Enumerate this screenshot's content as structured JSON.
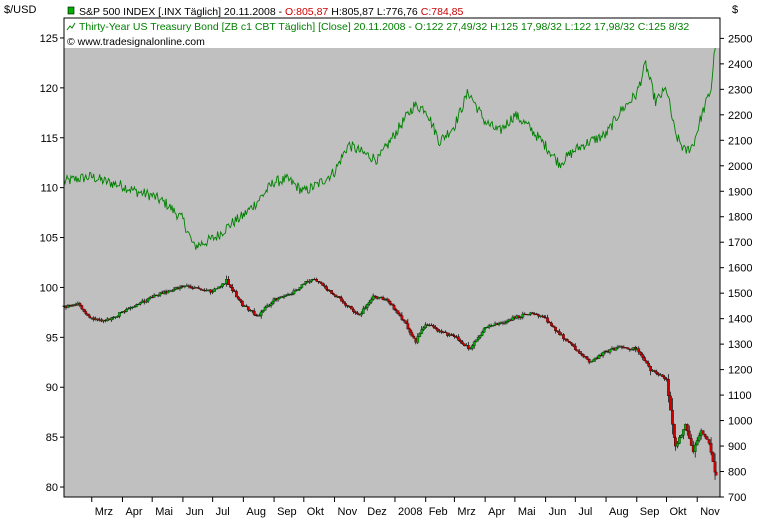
{
  "left_axis_unit": "$/USD",
  "right_axis_unit": "$",
  "watermark": "© www.tradesignalonline.com",
  "legend": {
    "spx": {
      "prefix": "S&P 500 INDEX [.INX  Täglich] 20.11.2008 - ",
      "open": "O:805,87",
      "high": "H:805,87",
      "low": "L:776,76",
      "close": "C:784,85"
    },
    "bond": {
      "text": "Thirty-Year US Treasury Bond [ZB c1 CBT  Täglich] [Close] 20.11.2008 - O:122 27,49/32 H:125 17,98/32 L:122 17,98/32 C:125 8/32"
    }
  },
  "colors": {
    "plot_bg": "#c0c0c0",
    "bond_line": "#008000",
    "candle_up": "#00b000",
    "candle_down": "#d00000",
    "candle_wick": "#000000",
    "legend_red": "#cc0000"
  },
  "chart_data": {
    "type": "line",
    "left_axis": {
      "min": 79,
      "max": 127,
      "ticks": [
        80,
        85,
        90,
        95,
        100,
        105,
        110,
        115,
        120,
        125
      ]
    },
    "right_axis": {
      "min": 700,
      "max": 2580,
      "ticks": [
        700,
        800,
        900,
        1000,
        1100,
        1200,
        1300,
        1400,
        1500,
        1600,
        1700,
        1800,
        1900,
        2000,
        2100,
        2200,
        2300,
        2400,
        2500
      ]
    },
    "x_ticks": [
      "Mrz",
      "Apr",
      "Mai",
      "Jun",
      "Jul",
      "Aug",
      "Sep",
      "Okt",
      "Nov",
      "Dez",
      "2008",
      "Feb",
      "Mrz",
      "Apr",
      "Mai",
      "Jun",
      "Jul",
      "Aug",
      "Sep",
      "Okt",
      "Nov"
    ],
    "x_range": [
      "2007-02-01",
      "2008-11-24"
    ],
    "bond_close": [
      [
        "2007-02-01",
        110.6
      ],
      [
        "2007-02-15",
        110.9
      ],
      [
        "2007-03-01",
        111.1
      ],
      [
        "2007-03-15",
        110.6
      ],
      [
        "2007-04-01",
        110.2
      ],
      [
        "2007-04-15",
        109.6
      ],
      [
        "2007-05-01",
        109.2
      ],
      [
        "2007-05-15",
        108.4
      ],
      [
        "2007-06-01",
        106.8
      ],
      [
        "2007-06-12",
        104.1
      ],
      [
        "2007-06-25",
        104.6
      ],
      [
        "2007-07-05",
        105.1
      ],
      [
        "2007-07-20",
        106.4
      ],
      [
        "2007-08-01",
        107.2
      ],
      [
        "2007-08-15",
        108.6
      ],
      [
        "2007-09-01",
        110.6
      ],
      [
        "2007-09-15",
        110.8
      ],
      [
        "2007-10-01",
        109.6
      ],
      [
        "2007-10-15",
        110.3
      ],
      [
        "2007-11-01",
        111.6
      ],
      [
        "2007-11-15",
        114.3
      ],
      [
        "2007-12-01",
        113.4
      ],
      [
        "2007-12-15",
        112.8
      ],
      [
        "2008-01-01",
        115.4
      ],
      [
        "2008-01-20",
        118.2
      ],
      [
        "2008-02-01",
        117.9
      ],
      [
        "2008-02-15",
        114.6
      ],
      [
        "2008-03-01",
        116.2
      ],
      [
        "2008-03-15",
        119.6
      ],
      [
        "2008-04-01",
        116.6
      ],
      [
        "2008-04-15",
        115.6
      ],
      [
        "2008-05-01",
        117.3
      ],
      [
        "2008-05-15",
        116.1
      ],
      [
        "2008-06-01",
        114.2
      ],
      [
        "2008-06-15",
        112.4
      ],
      [
        "2008-07-01",
        113.8
      ],
      [
        "2008-07-15",
        114.6
      ],
      [
        "2008-08-01",
        115.3
      ],
      [
        "2008-08-15",
        117.6
      ],
      [
        "2008-09-01",
        119.4
      ],
      [
        "2008-09-10",
        122.4
      ],
      [
        "2008-09-20",
        118.6
      ],
      [
        "2008-10-01",
        119.9
      ],
      [
        "2008-10-10",
        115.3
      ],
      [
        "2008-10-20",
        113.6
      ],
      [
        "2008-10-28",
        114.3
      ],
      [
        "2008-11-05",
        117.1
      ],
      [
        "2008-11-15",
        119.9
      ],
      [
        "2008-11-20",
        125.3
      ]
    ],
    "spx_close": [
      [
        "2007-02-01",
        1445
      ],
      [
        "2007-02-15",
        1455
      ],
      [
        "2007-03-01",
        1400
      ],
      [
        "2007-03-15",
        1390
      ],
      [
        "2007-04-01",
        1425
      ],
      [
        "2007-04-15",
        1450
      ],
      [
        "2007-05-01",
        1490
      ],
      [
        "2007-05-15",
        1505
      ],
      [
        "2007-06-01",
        1530
      ],
      [
        "2007-06-15",
        1520
      ],
      [
        "2007-07-01",
        1505
      ],
      [
        "2007-07-15",
        1550
      ],
      [
        "2007-07-31",
        1455
      ],
      [
        "2007-08-15",
        1410
      ],
      [
        "2007-09-01",
        1475
      ],
      [
        "2007-09-15",
        1490
      ],
      [
        "2007-10-01",
        1540
      ],
      [
        "2007-10-10",
        1560
      ],
      [
        "2007-10-25",
        1515
      ],
      [
        "2007-11-10",
        1465
      ],
      [
        "2007-11-26",
        1410
      ],
      [
        "2007-12-10",
        1490
      ],
      [
        "2007-12-25",
        1470
      ],
      [
        "2008-01-10",
        1390
      ],
      [
        "2008-01-22",
        1310
      ],
      [
        "2008-02-01",
        1380
      ],
      [
        "2008-02-15",
        1350
      ],
      [
        "2008-03-01",
        1330
      ],
      [
        "2008-03-17",
        1280
      ],
      [
        "2008-04-01",
        1370
      ],
      [
        "2008-04-15",
        1380
      ],
      [
        "2008-05-01",
        1405
      ],
      [
        "2008-05-15",
        1420
      ],
      [
        "2008-06-01",
        1400
      ],
      [
        "2008-06-15",
        1340
      ],
      [
        "2008-07-01",
        1280
      ],
      [
        "2008-07-15",
        1230
      ],
      [
        "2008-08-01",
        1270
      ],
      [
        "2008-08-15",
        1290
      ],
      [
        "2008-09-01",
        1280
      ],
      [
        "2008-09-15",
        1200
      ],
      [
        "2008-10-01",
        1160
      ],
      [
        "2008-10-10",
        900
      ],
      [
        "2008-10-20",
        980
      ],
      [
        "2008-10-28",
        880
      ],
      [
        "2008-11-05",
        960
      ],
      [
        "2008-11-13",
        910
      ],
      [
        "2008-11-20",
        785
      ]
    ]
  }
}
